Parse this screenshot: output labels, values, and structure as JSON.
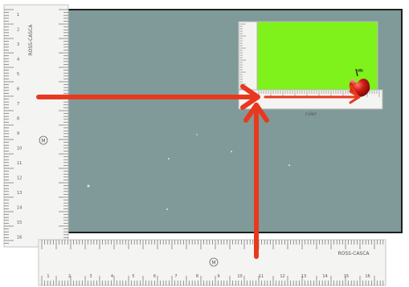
{
  "figure": {
    "left_ruler": {
      "brand_text": "ROSS-CASCA",
      "center_mark": "M",
      "numbers": [
        "1",
        "2",
        "3",
        "4",
        "5",
        "6",
        "7",
        "8",
        "9",
        "10",
        "11",
        "12",
        "13",
        "14",
        "15",
        "16"
      ]
    },
    "bottom_ruler": {
      "brand_text": "ROSS-CASCA",
      "center_mark": "M",
      "numbers": [
        "1",
        "2",
        "3",
        "4",
        "5",
        "6",
        "7",
        "8",
        "9",
        "10",
        "11",
        "12",
        "13",
        "14",
        "15",
        "16"
      ]
    },
    "inner_ruler": {
      "label": "ruler"
    },
    "colors": {
      "board": "#7f9a98",
      "board_border": "#1e1e1e",
      "green_rect": "#7ef21a",
      "arrow": "#e8391e",
      "apple": "#d31e16",
      "ruler": "#f4f4f2"
    },
    "icons": [
      "apple-icon",
      "arrow-right-icon",
      "arrow-up-icon"
    ]
  }
}
